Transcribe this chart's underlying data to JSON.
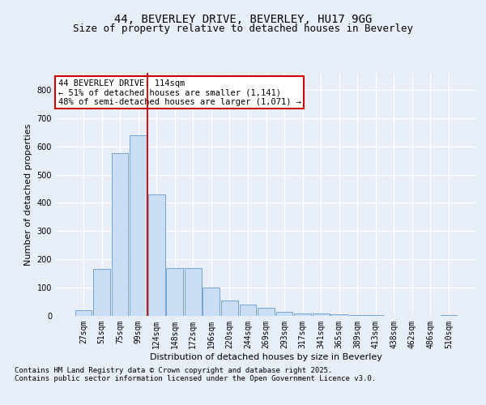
{
  "title_line1": "44, BEVERLEY DRIVE, BEVERLEY, HU17 9GG",
  "title_line2": "Size of property relative to detached houses in Beverley",
  "xlabel": "Distribution of detached houses by size in Beverley",
  "ylabel": "Number of detached properties",
  "bar_labels": [
    "27sqm",
    "51sqm",
    "75sqm",
    "99sqm",
    "124sqm",
    "148sqm",
    "172sqm",
    "196sqm",
    "220sqm",
    "244sqm",
    "269sqm",
    "293sqm",
    "317sqm",
    "341sqm",
    "365sqm",
    "389sqm",
    "413sqm",
    "438sqm",
    "462sqm",
    "486sqm",
    "510sqm"
  ],
  "bar_values": [
    20,
    165,
    575,
    640,
    430,
    170,
    170,
    100,
    55,
    40,
    30,
    15,
    10,
    8,
    5,
    3,
    2,
    1,
    1,
    0,
    4
  ],
  "bar_color": "#c9ddf5",
  "bar_edge_color": "#6699cc",
  "vline_x_index": 3.5,
  "annotation_text": "44 BEVERLEY DRIVE: 114sqm\n← 51% of detached houses are smaller (1,141)\n48% of semi-detached houses are larger (1,071) →",
  "annotation_box_color": "#ffffff",
  "annotation_box_edge_color": "#cc0000",
  "vline_color": "#cc0000",
  "ylim": [
    0,
    860
  ],
  "yticks": [
    0,
    100,
    200,
    300,
    400,
    500,
    600,
    700,
    800
  ],
  "background_color": "#e8eef8",
  "plot_bg_color": "#e8eef8",
  "grid_color": "#ffffff",
  "footer_line1": "Contains HM Land Registry data © Crown copyright and database right 2025.",
  "footer_line2": "Contains public sector information licensed under the Open Government Licence v3.0.",
  "title_fontsize": 10,
  "subtitle_fontsize": 9,
  "axis_label_fontsize": 8,
  "tick_fontsize": 7,
  "annotation_fontsize": 7.5,
  "footer_fontsize": 6.5
}
